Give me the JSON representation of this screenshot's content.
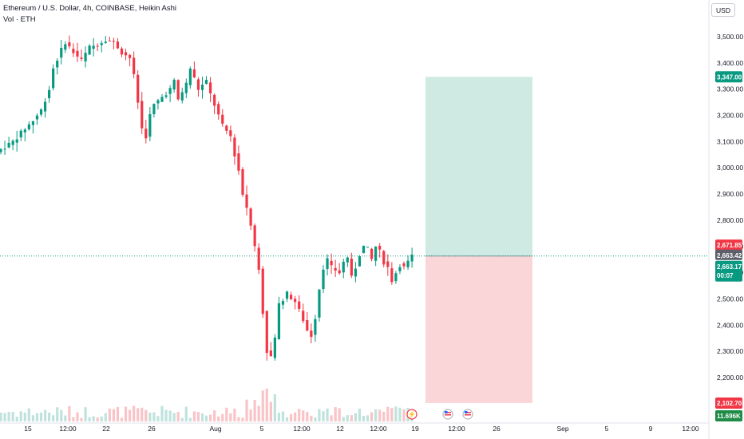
{
  "header": {
    "title": "Ethereum / U.S. Dollar, 4h, COINBASE, Heikin Ashi",
    "volume_label": "Vol · ETH"
  },
  "currency_button": "USD",
  "colors": {
    "up": "#089981",
    "down": "#f23645",
    "profit_zone": "#cfeae3",
    "loss_zone": "#fbd6d8",
    "volume_up": "#bfe3dc",
    "volume_down": "#f9c4c8",
    "price_line": "#089981"
  },
  "chart_data": {
    "type": "candlestick",
    "title": "Ethereum / U.S. Dollar, 4h, COINBASE, Heikin Ashi",
    "y_axis": {
      "ticks": [
        2200,
        2300,
        2400,
        2500,
        2600,
        2700,
        2800,
        2900,
        3000,
        3100,
        3200,
        3300,
        3400,
        3500
      ],
      "tick_labels": [
        "2,200.00",
        "2,300.00",
        "2,400.00",
        "2,500.00",
        "2,600.00",
        "2,700.00",
        "2,800.00",
        "2,900.00",
        "3,000.00",
        "3,100.00",
        "3,200.00",
        "3,300.00",
        "3,400.00",
        "3,500.00"
      ],
      "range": [
        2090,
        3560
      ]
    },
    "x_axis": {
      "tick_labels": [
        "15",
        "12:00",
        "22",
        "26",
        "Aug",
        "5",
        "12:00",
        "12",
        "12:00",
        "19",
        "12:00",
        "26",
        "Sep",
        "5",
        "9",
        "12:00"
      ]
    },
    "price_path": [
      [
        0,
        3070
      ],
      [
        3,
        3100
      ],
      [
        6,
        3150
      ],
      [
        8,
        3180
      ],
      [
        10,
        3220
      ],
      [
        12,
        3300
      ],
      [
        13,
        3380
      ],
      [
        15,
        3450
      ],
      [
        16,
        3480
      ],
      [
        18,
        3440
      ],
      [
        20,
        3410
      ],
      [
        22,
        3460
      ],
      [
        24,
        3470
      ],
      [
        26,
        3490
      ],
      [
        28,
        3480
      ],
      [
        30,
        3440
      ],
      [
        32,
        3420
      ],
      [
        33,
        3350
      ],
      [
        34,
        3250
      ],
      [
        35,
        3150
      ],
      [
        36,
        3120
      ],
      [
        37,
        3200
      ],
      [
        38,
        3240
      ],
      [
        40,
        3270
      ],
      [
        42,
        3300
      ],
      [
        43,
        3330
      ],
      [
        44,
        3260
      ],
      [
        46,
        3320
      ],
      [
        47,
        3380
      ],
      [
        49,
        3300
      ],
      [
        51,
        3330
      ],
      [
        52,
        3280
      ],
      [
        54,
        3200
      ],
      [
        55,
        3160
      ],
      [
        57,
        3120
      ],
      [
        58,
        3050
      ],
      [
        59,
        2990
      ],
      [
        60,
        2900
      ],
      [
        61,
        2850
      ],
      [
        62,
        2780
      ],
      [
        63,
        2700
      ],
      [
        64,
        2620
      ],
      [
        65,
        2450
      ],
      [
        66,
        2300
      ],
      [
        67,
        2280
      ],
      [
        68,
        2350
      ],
      [
        69,
        2480
      ],
      [
        71,
        2520
      ],
      [
        73,
        2490
      ],
      [
        75,
        2420
      ],
      [
        76,
        2380
      ],
      [
        77,
        2360
      ],
      [
        78,
        2430
      ],
      [
        79,
        2540
      ],
      [
        80,
        2620
      ],
      [
        81,
        2650
      ],
      [
        82,
        2620
      ],
      [
        84,
        2600
      ],
      [
        85,
        2640
      ],
      [
        86,
        2660
      ],
      [
        87,
        2580
      ],
      [
        88,
        2620
      ],
      [
        89,
        2670
      ],
      [
        90,
        2700
      ],
      [
        91,
        2690
      ],
      [
        92,
        2650
      ],
      [
        93,
        2700
      ],
      [
        94,
        2680
      ],
      [
        95,
        2640
      ],
      [
        96,
        2620
      ],
      [
        97,
        2570
      ],
      [
        98,
        2600
      ],
      [
        99,
        2630
      ],
      [
        100,
        2620
      ],
      [
        101,
        2640
      ],
      [
        102,
        2663
      ]
    ],
    "candle_count": 103,
    "position": {
      "type": "long",
      "entry": 2663.42,
      "target": 3347.0,
      "stop": 2102.7
    },
    "price_labels": {
      "target": "3,347.00",
      "high": "2,671.85",
      "entry": "2,663.42",
      "last": "2,663.17",
      "countdown": "00:07",
      "stop": "2,102.70",
      "volume": "11.696K"
    },
    "event_markers": [
      "lightning",
      "flag-us",
      "flag-us"
    ]
  }
}
